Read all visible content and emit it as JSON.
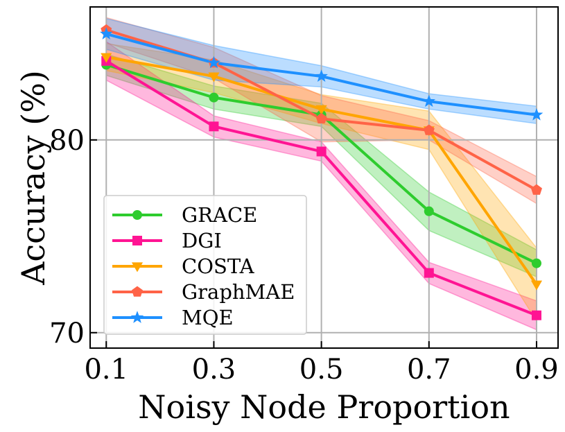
{
  "chart_data": {
    "type": "line",
    "xlabel": "Noisy Node Proportion",
    "ylabel": "Accuracy (%)",
    "x": [
      0.1,
      0.3,
      0.5,
      0.7,
      0.9
    ],
    "x_tick_labels": [
      "0.1",
      "0.3",
      "0.5",
      "0.7",
      "0.9"
    ],
    "y_ticks": [
      70,
      80
    ],
    "y_tick_labels": [
      "70",
      "80"
    ],
    "xlim": [
      0.07,
      0.94
    ],
    "ylim": [
      69.2,
      86.9
    ],
    "grid": true,
    "legend_position": "lower-left",
    "series": [
      {
        "name": "GRACE",
        "color": "#2ecc2e",
        "marker": "circle",
        "values": [
          83.9,
          82.2,
          81.3,
          76.3,
          73.6
        ],
        "band": [
          0.55,
          0.6,
          0.6,
          1.0,
          0.7
        ]
      },
      {
        "name": "DGI",
        "color": "#ff1493",
        "marker": "square",
        "values": [
          84.1,
          80.7,
          79.4,
          73.1,
          70.9
        ],
        "band": [
          1.0,
          0.55,
          0.5,
          0.55,
          0.75
        ]
      },
      {
        "name": "COSTA",
        "color": "#ffa500",
        "marker": "triangle-down",
        "values": [
          84.3,
          83.3,
          81.6,
          80.5,
          72.5
        ],
        "band": [
          0.7,
          0.85,
          0.75,
          1.0,
          1.9
        ]
      },
      {
        "name": "GraphMAE",
        "color": "#ff6347",
        "marker": "pentagon",
        "values": [
          85.7,
          84.0,
          81.1,
          80.5,
          77.4
        ],
        "band": [
          0.65,
          0.8,
          1.2,
          0.5,
          0.7
        ]
      },
      {
        "name": "MQE",
        "color": "#1e90ff",
        "marker": "star",
        "values": [
          85.5,
          84.0,
          83.3,
          82.0,
          81.3
        ],
        "band": [
          0.8,
          0.9,
          0.55,
          0.4,
          0.45
        ]
      }
    ]
  }
}
